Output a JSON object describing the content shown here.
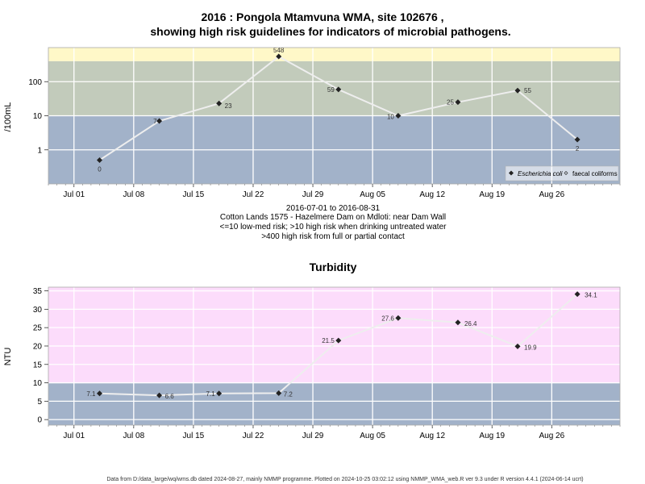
{
  "chart_data": [
    {
      "type": "line",
      "title": "2016 : Pongola Mtamvuna WMA, site 102676 ,",
      "title2": "showing high risk guidelines for indicators of microbial pathogens.",
      "ylabel": "/100mL",
      "yscale": "log",
      "ylim": [
        0.1,
        1000
      ],
      "yticks": [
        1,
        10,
        100
      ],
      "ytick_labels": [
        "1",
        "10",
        "100"
      ],
      "x_dates": [
        "2016-07-04",
        "2016-07-11",
        "2016-07-18",
        "2016-07-25",
        "2016-08-01",
        "2016-08-08",
        "2016-08-15",
        "2016-08-22",
        "2016-08-29"
      ],
      "xticks": [
        "Jul 01",
        "Jul 08",
        "Jul 15",
        "Jul 22",
        "Jul 29",
        "Aug 05",
        "Aug 12",
        "Aug 19",
        "Aug 26"
      ],
      "series": [
        {
          "name": "Escherichia coli",
          "values": [
            0.5,
            7,
            23,
            548,
            59,
            10,
            25,
            55,
            2
          ],
          "labels": [
            "0",
            "7",
            "23",
            "548",
            "59",
            "10",
            "25",
            "55",
            "2"
          ]
        }
      ],
      "legend": [
        "Escherichia coli",
        "faecal coliforms"
      ],
      "legend_position": "bottom-right",
      "bands": [
        {
          "from": 0.1,
          "to": 10,
          "color": "#a2b2c9"
        },
        {
          "from": 10,
          "to": 400,
          "color": "#c2cbbb"
        },
        {
          "from": 400,
          "to": 1000,
          "color": "#fff8c8"
        }
      ],
      "xlabel_lines": [
        "2016-07-01 to 2016-08-31",
        "Cotton Lands 1575 - Hazelmere Dam on Mdloti: near Dam Wall",
        "<=10 low-med risk; >10 high risk when drinking untreated water",
        ">400 high risk from full or partial contact"
      ]
    },
    {
      "type": "line",
      "title": "Turbidity",
      "ylabel": "NTU",
      "ylim": [
        -1.5,
        36
      ],
      "yticks": [
        0,
        5,
        10,
        15,
        20,
        25,
        30,
        35
      ],
      "ytick_labels": [
        "0",
        "5",
        "10",
        "15",
        "20",
        "25",
        "30",
        "35"
      ],
      "x_dates": [
        "2016-07-04",
        "2016-07-11",
        "2016-07-18",
        "2016-07-25",
        "2016-08-01",
        "2016-08-08",
        "2016-08-15",
        "2016-08-22",
        "2016-08-29"
      ],
      "xticks": [
        "Jul 01",
        "Jul 08",
        "Jul 15",
        "Jul 22",
        "Jul 29",
        "Aug 05",
        "Aug 12",
        "Aug 19",
        "Aug 26"
      ],
      "series": [
        {
          "values": [
            7.1,
            6.6,
            7.1,
            7.2,
            21.5,
            27.6,
            26.4,
            19.9,
            34.1
          ],
          "labels": [
            "7.1",
            "6.6",
            "7.1",
            "7.2",
            "21.5",
            "27.6",
            "26.4",
            "19.9",
            "34.1"
          ]
        }
      ],
      "bands": [
        {
          "from": -1.5,
          "to": 10,
          "color": "#a2b2c9"
        },
        {
          "from": 10,
          "to": 36,
          "color": "#fcdcfb"
        }
      ]
    }
  ],
  "footer": "Data from D:/data_large/wq/wms.db dated 2024-08-27, mainly NMMP programme. Plotted on 2024-10-25 03:02:12 using NMMP_WMA_web.R ver 9.3 under R version 4.4.1 (2024-06-14 ucrt)"
}
